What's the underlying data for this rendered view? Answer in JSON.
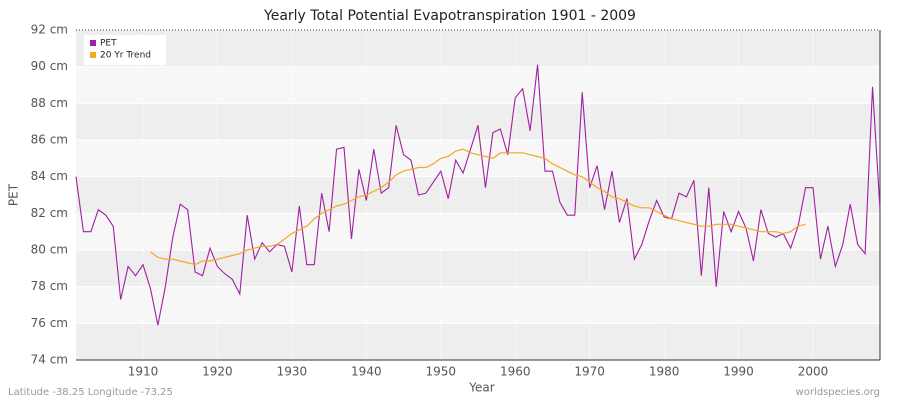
{
  "chart_data": {
    "type": "line",
    "title": "Yearly Total Potential Evapotranspiration 1901 - 2009",
    "x_label": "Year",
    "y_label": "PET",
    "footer_left": "Latitude -38.25 Longitude -73.25",
    "footer_right": "worldspecies.org",
    "x": [
      1901,
      1902,
      1903,
      1904,
      1905,
      1906,
      1907,
      1908,
      1909,
      1910,
      1911,
      1912,
      1913,
      1914,
      1915,
      1916,
      1917,
      1918,
      1919,
      1920,
      1921,
      1922,
      1923,
      1924,
      1925,
      1926,
      1927,
      1928,
      1929,
      1930,
      1931,
      1932,
      1933,
      1934,
      1935,
      1936,
      1937,
      1938,
      1939,
      1940,
      1941,
      1942,
      1943,
      1944,
      1945,
      1946,
      1947,
      1948,
      1949,
      1950,
      1951,
      1952,
      1953,
      1954,
      1955,
      1956,
      1957,
      1958,
      1959,
      1960,
      1961,
      1962,
      1963,
      1964,
      1965,
      1966,
      1967,
      1968,
      1969,
      1970,
      1971,
      1972,
      1973,
      1974,
      1975,
      1976,
      1977,
      1978,
      1979,
      1980,
      1981,
      1982,
      1983,
      1984,
      1985,
      1986,
      1987,
      1988,
      1989,
      1990,
      1991,
      1992,
      1993,
      1994,
      1995,
      1996,
      1997,
      1998,
      1999,
      2000,
      2001,
      2002,
      2003,
      2004,
      2005,
      2006,
      2007,
      2008,
      2009
    ],
    "series": [
      {
        "name": "PET",
        "color": "#a020a0",
        "values": [
          84.0,
          81.0,
          81.0,
          82.2,
          81.9,
          81.3,
          77.3,
          79.1,
          78.6,
          79.2,
          77.9,
          75.9,
          78.0,
          80.7,
          82.5,
          82.2,
          78.8,
          78.6,
          80.1,
          79.1,
          78.7,
          78.4,
          77.6,
          81.9,
          79.5,
          80.4,
          79.9,
          80.3,
          80.2,
          78.8,
          82.4,
          79.2,
          79.2,
          83.1,
          81.0,
          85.5,
          85.6,
          80.6,
          84.4,
          82.7,
          85.5,
          83.1,
          83.4,
          86.8,
          85.2,
          84.9,
          83.0,
          83.1,
          83.7,
          84.3,
          82.8,
          84.9,
          84.2,
          85.5,
          86.8,
          83.4,
          86.4,
          86.6,
          85.2,
          88.3,
          88.8,
          86.5,
          90.1,
          84.3,
          84.3,
          82.6,
          81.9,
          81.9,
          88.6,
          83.4,
          84.6,
          82.2,
          84.3,
          81.5,
          82.8,
          79.5,
          80.3,
          81.6,
          82.7,
          81.8,
          81.7,
          83.1,
          82.9,
          83.8,
          78.6,
          83.4,
          78.0,
          82.1,
          81.0,
          82.1,
          81.2,
          79.4,
          82.2,
          80.9,
          80.7,
          80.9,
          80.1,
          81.3,
          83.4,
          83.4,
          79.5,
          81.3,
          79.1,
          80.3,
          82.5,
          80.3,
          79.8,
          88.9,
          82.2
        ]
      },
      {
        "name": "20 Yr Trend",
        "color": "#f5a623",
        "values": [
          null,
          null,
          null,
          null,
          null,
          null,
          null,
          null,
          null,
          null,
          79.9,
          79.6,
          79.5,
          79.5,
          79.4,
          79.3,
          79.2,
          79.4,
          79.4,
          79.5,
          79.6,
          79.7,
          79.8,
          80.0,
          80.1,
          80.2,
          80.2,
          80.3,
          80.6,
          80.9,
          81.1,
          81.3,
          81.7,
          82.0,
          82.2,
          82.4,
          82.5,
          82.7,
          82.9,
          83.0,
          83.2,
          83.4,
          83.7,
          84.1,
          84.3,
          84.4,
          84.5,
          84.5,
          84.7,
          85.0,
          85.1,
          85.4,
          85.5,
          85.3,
          85.2,
          85.1,
          85.0,
          85.3,
          85.3,
          85.3,
          85.3,
          85.2,
          85.1,
          85.0,
          84.7,
          84.5,
          84.3,
          84.1,
          84.0,
          83.7,
          83.4,
          83.2,
          82.9,
          82.8,
          82.6,
          82.4,
          82.3,
          82.3,
          82.1,
          81.9,
          81.7,
          81.6,
          81.5,
          81.4,
          81.3,
          81.3,
          81.4,
          81.4,
          81.4,
          81.3,
          81.2,
          81.1,
          81.0,
          81.0,
          81.0,
          80.9,
          81.0,
          81.3,
          81.4,
          null,
          null,
          null,
          null,
          null,
          null,
          null,
          null,
          null,
          null
        ]
      }
    ],
    "xlim": [
      1901,
      2009
    ],
    "xticks": [
      1910,
      1920,
      1930,
      1940,
      1950,
      1960,
      1970,
      1980,
      1990,
      2000
    ],
    "ylim": [
      74,
      92
    ],
    "yticks": [
      {
        "value": 74,
        "label": "74 cm"
      },
      {
        "value": 76,
        "label": "76 cm"
      },
      {
        "value": 78,
        "label": "78 cm"
      },
      {
        "value": 80,
        "label": "80 cm"
      },
      {
        "value": 82,
        "label": "82 cm"
      },
      {
        "value": 84,
        "label": "84 cm"
      },
      {
        "value": 86,
        "label": "86 cm"
      },
      {
        "value": 88,
        "label": "88 cm"
      },
      {
        "value": 90,
        "label": "90 cm"
      },
      {
        "value": 92,
        "label": "92 cm"
      }
    ],
    "grid": true,
    "legend": "top-left"
  }
}
